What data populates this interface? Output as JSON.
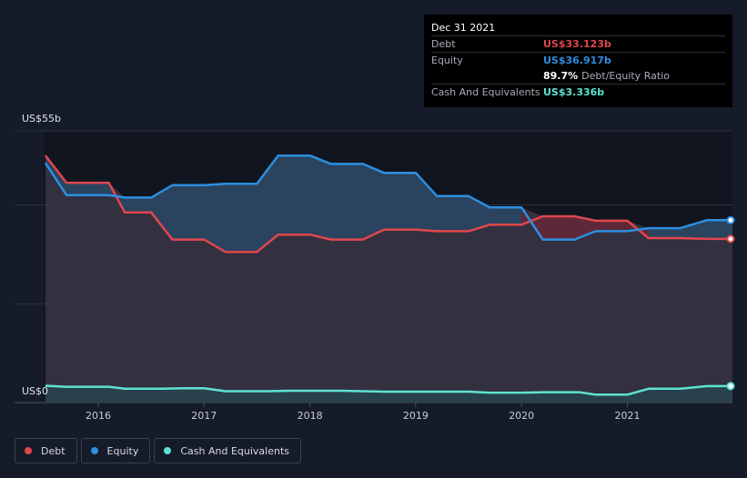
{
  "tooltip": {
    "date": "Dec 31 2021",
    "debt_label": "Debt",
    "debt_value": "US$33.123b",
    "equity_label": "Equity",
    "equity_value": "US$36.917b",
    "ratio_pct": "89.7%",
    "ratio_label": "Debt/Equity Ratio",
    "cash_label": "Cash And Equivalents",
    "cash_value": "US$3.336b"
  },
  "y_axis": {
    "top_label": "US$55b",
    "zero_label": "US$0"
  },
  "legend": [
    {
      "label": "Debt",
      "color": "#e0474c"
    },
    {
      "label": "Equity",
      "color": "#2d8fe0"
    },
    {
      "label": "Cash And Equivalents",
      "color": "#5ee3d2"
    }
  ],
  "chart_data": {
    "type": "line",
    "x_ticks": [
      "2016",
      "2017",
      "2018",
      "2019",
      "2020",
      "2021"
    ],
    "ylim": [
      0,
      55
    ],
    "series": [
      {
        "name": "Debt",
        "color": "#e0474c",
        "points": [
          [
            2015.5,
            50
          ],
          [
            2015.7,
            44.5
          ],
          [
            2015.9,
            44.5
          ],
          [
            2016.1,
            44.5
          ],
          [
            2016.25,
            38.5
          ],
          [
            2016.5,
            38.5
          ],
          [
            2016.7,
            33
          ],
          [
            2017.0,
            33
          ],
          [
            2017.2,
            30.5
          ],
          [
            2017.5,
            30.5
          ],
          [
            2017.7,
            34
          ],
          [
            2018.0,
            34
          ],
          [
            2018.2,
            33
          ],
          [
            2018.5,
            33
          ],
          [
            2018.7,
            35
          ],
          [
            2019.0,
            35
          ],
          [
            2019.2,
            34.7
          ],
          [
            2019.5,
            34.7
          ],
          [
            2019.7,
            36
          ],
          [
            2020.0,
            36
          ],
          [
            2020.2,
            37.7
          ],
          [
            2020.5,
            37.7
          ],
          [
            2020.7,
            36.8
          ],
          [
            2021.0,
            36.8
          ],
          [
            2021.2,
            33.3
          ],
          [
            2021.5,
            33.3
          ],
          [
            2021.75,
            33.123
          ],
          [
            2022.0,
            33.123
          ]
        ]
      },
      {
        "name": "Equity",
        "color": "#2d8fe0",
        "points": [
          [
            2015.5,
            48.5
          ],
          [
            2015.7,
            42
          ],
          [
            2015.9,
            42
          ],
          [
            2016.1,
            42
          ],
          [
            2016.25,
            41.5
          ],
          [
            2016.5,
            41.5
          ],
          [
            2016.7,
            44
          ],
          [
            2017.0,
            44
          ],
          [
            2017.2,
            44.3
          ],
          [
            2017.5,
            44.3
          ],
          [
            2017.7,
            50
          ],
          [
            2018.0,
            50
          ],
          [
            2018.2,
            48.3
          ],
          [
            2018.5,
            48.3
          ],
          [
            2018.7,
            46.5
          ],
          [
            2019.0,
            46.5
          ],
          [
            2019.2,
            41.8
          ],
          [
            2019.5,
            41.8
          ],
          [
            2019.7,
            39.5
          ],
          [
            2020.0,
            39.5
          ],
          [
            2020.2,
            33
          ],
          [
            2020.5,
            33
          ],
          [
            2020.7,
            34.7
          ],
          [
            2021.0,
            34.7
          ],
          [
            2021.2,
            35.3
          ],
          [
            2021.5,
            35.3
          ],
          [
            2021.75,
            36.917
          ],
          [
            2022.0,
            36.917
          ]
        ]
      },
      {
        "name": "Cash And Equivalents",
        "color": "#5ee3d2",
        "points": [
          [
            2015.5,
            3.4
          ],
          [
            2015.7,
            3.2
          ],
          [
            2016.1,
            3.2
          ],
          [
            2016.25,
            2.8
          ],
          [
            2016.6,
            2.8
          ],
          [
            2016.8,
            2.9
          ],
          [
            2017.0,
            2.9
          ],
          [
            2017.2,
            2.3
          ],
          [
            2017.6,
            2.3
          ],
          [
            2017.8,
            2.4
          ],
          [
            2018.3,
            2.4
          ],
          [
            2018.7,
            2.2
          ],
          [
            2019.5,
            2.2
          ],
          [
            2019.7,
            2.0
          ],
          [
            2020.0,
            2.0
          ],
          [
            2020.2,
            2.1
          ],
          [
            2020.55,
            2.1
          ],
          [
            2020.7,
            1.6
          ],
          [
            2021.0,
            1.6
          ],
          [
            2021.2,
            2.8
          ],
          [
            2021.5,
            2.8
          ],
          [
            2021.75,
            3.336
          ],
          [
            2022.0,
            3.336
          ]
        ]
      }
    ]
  }
}
